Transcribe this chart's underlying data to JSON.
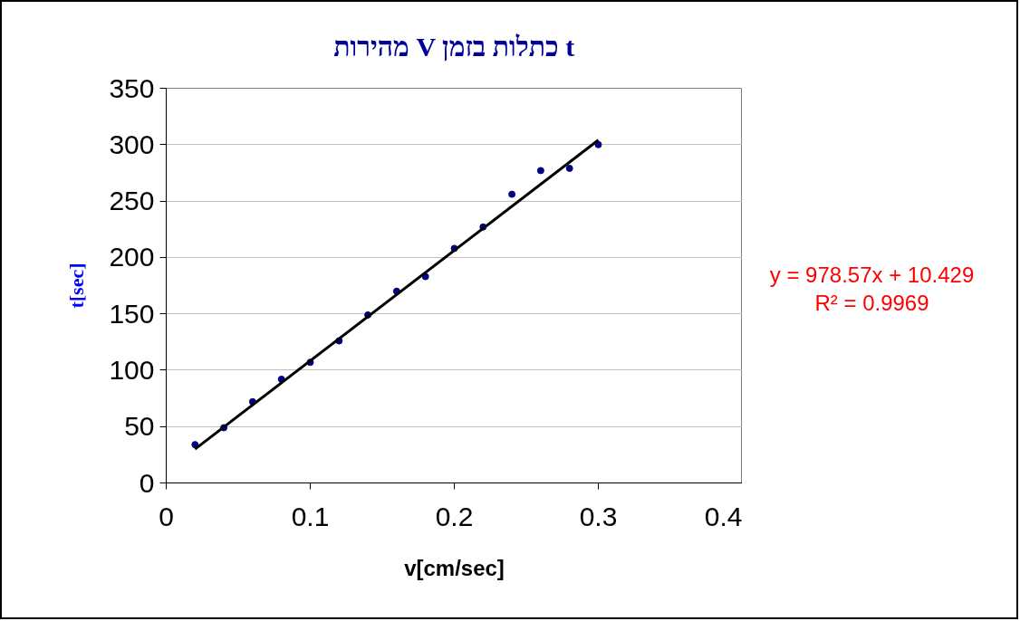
{
  "chart_data": {
    "type": "scatter",
    "title": "מהירות V כתלות בזמן t",
    "xlabel": "v[cm/sec]",
    "ylabel": "t[sec]",
    "annotations": [
      "y = 978.57x + 10.429",
      "R² = 0.9969"
    ],
    "series": [
      {
        "color": "#000080",
        "marker": "circle",
        "x": [
          0.02,
          0.04,
          0.06,
          0.08,
          0.1,
          0.12,
          0.14,
          0.16,
          0.18,
          0.2,
          0.22,
          0.24,
          0.26,
          0.28,
          0.3
        ],
        "values": [
          34,
          49,
          72,
          92,
          107,
          126,
          149,
          170,
          183,
          208,
          227,
          256,
          277,
          279,
          300
        ]
      },
      {
        "type": "line",
        "color": "#000000",
        "x": [
          0.02,
          0.3
        ],
        "values": [
          30,
          304
        ]
      }
    ],
    "xlim": [
      0,
      0.4
    ],
    "xticks": [
      0,
      0.1,
      0.2,
      0.3,
      0.4
    ],
    "ylim": [
      0,
      350
    ],
    "yticks": [
      0,
      50,
      100,
      150,
      200,
      250,
      300,
      350
    ],
    "grid": "y"
  }
}
